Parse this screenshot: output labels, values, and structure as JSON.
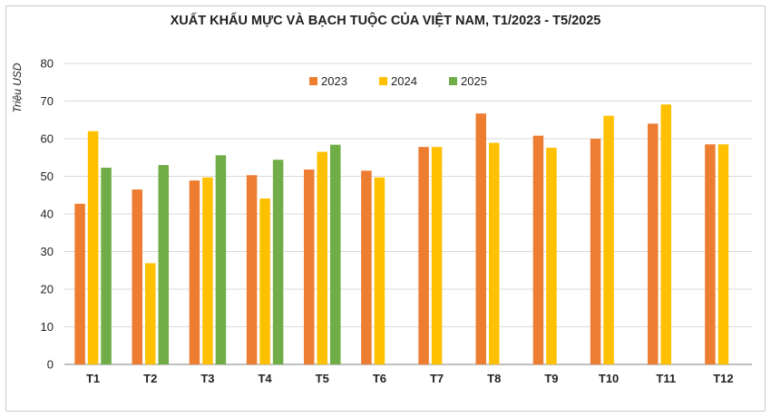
{
  "chart_data": {
    "type": "bar",
    "title": "XUẤT KHẨU MỰC VÀ BẠCH TUỘC CỦA VIỆT NAM, T1/2023 - T5/2025",
    "ylabel": "Triệu USD",
    "xlabel": "",
    "ylim": [
      0,
      80
    ],
    "yticks": [
      0,
      10,
      20,
      30,
      40,
      50,
      60,
      70,
      80
    ],
    "grid": true,
    "legend_position": "top-center",
    "categories": [
      "T1",
      "T2",
      "T3",
      "T4",
      "T5",
      "T6",
      "T7",
      "T8",
      "T9",
      "T10",
      "T11",
      "T12"
    ],
    "series": [
      {
        "name": "2023",
        "color": "#ED7D31",
        "values": [
          42.7,
          46.5,
          48.9,
          50.3,
          51.8,
          51.5,
          57.8,
          66.7,
          60.8,
          60.0,
          64.0,
          58.5
        ]
      },
      {
        "name": "2024",
        "color": "#FFC000",
        "values": [
          62.0,
          26.9,
          49.7,
          44.1,
          56.5,
          49.7,
          57.8,
          58.9,
          57.6,
          66.1,
          69.1,
          58.5
        ]
      },
      {
        "name": "2025",
        "color": "#70AD47",
        "values": [
          52.3,
          53.0,
          55.6,
          54.4,
          58.4,
          null,
          null,
          null,
          null,
          null,
          null,
          null
        ]
      }
    ]
  }
}
